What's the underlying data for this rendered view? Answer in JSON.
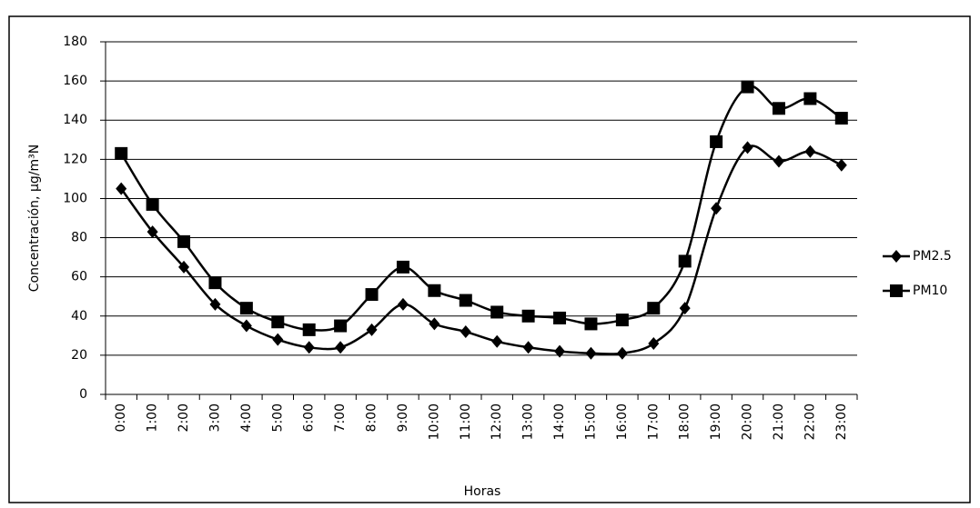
{
  "chart_data": {
    "type": "line",
    "x_label": "Horas",
    "y_label": "Concentración, µg/m³N",
    "categories": [
      "0:00",
      "1:00",
      "2:00",
      "3:00",
      "4:00",
      "5:00",
      "6:00",
      "7:00",
      "8:00",
      "9:00",
      "10:00",
      "11:00",
      "12:00",
      "13:00",
      "14:00",
      "15:00",
      "16:00",
      "17:00",
      "18:00",
      "19:00",
      "20:00",
      "21:00",
      "22:00",
      "23:00"
    ],
    "series": [
      {
        "name": "PM2.5",
        "color": "#000000",
        "marker": "diamond",
        "values": [
          105,
          83,
          65,
          46,
          35,
          28,
          24,
          24,
          33,
          46,
          36,
          32,
          27,
          24,
          22,
          21,
          21,
          26,
          44,
          95,
          126,
          119,
          124,
          117
        ]
      },
      {
        "name": "PM10",
        "color": "#000000",
        "marker": "square",
        "values": [
          123,
          97,
          78,
          57,
          44,
          37,
          33,
          35,
          51,
          65,
          53,
          48,
          42,
          40,
          39,
          36,
          38,
          44,
          68,
          129,
          157,
          146,
          151,
          141
        ]
      }
    ],
    "ylim": [
      0,
      180
    ],
    "yticks": [
      0,
      20,
      40,
      60,
      80,
      100,
      120,
      140,
      160,
      180
    ],
    "grid": true,
    "legend": "right"
  }
}
